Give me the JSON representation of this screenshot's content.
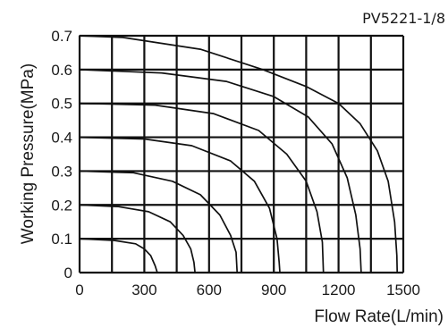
{
  "chart_data": {
    "type": "line",
    "title": "PV5221-1/8",
    "xlabel": "Flow Rate(L/min)",
    "ylabel": "Working Pressure(MPa)",
    "xlim": [
      0,
      1500
    ],
    "ylim": [
      0,
      0.7
    ],
    "grid": true,
    "x_tick_labels": [
      "0",
      "300",
      "600",
      "900",
      "1200",
      "1500"
    ],
    "x_tick_values": [
      0,
      300,
      600,
      900,
      1200,
      1500
    ],
    "y_tick_labels": [
      "0",
      "0.1",
      "0.2",
      "0.3",
      "0.4",
      "0.5",
      "0.6",
      "0.7"
    ],
    "y_tick_values": [
      0,
      0.1,
      0.2,
      0.3,
      0.4,
      0.5,
      0.6,
      0.7
    ],
    "series": [
      {
        "start_pressure": 0.1,
        "points": [
          [
            0,
            0.1
          ],
          [
            160,
            0.095
          ],
          [
            260,
            0.085
          ],
          [
            300,
            0.07
          ],
          [
            330,
            0.05
          ],
          [
            350,
            0.02
          ],
          [
            360,
            0
          ]
        ]
      },
      {
        "start_pressure": 0.2,
        "points": [
          [
            0,
            0.2
          ],
          [
            180,
            0.195
          ],
          [
            320,
            0.18
          ],
          [
            420,
            0.15
          ],
          [
            480,
            0.11
          ],
          [
            515,
            0.07
          ],
          [
            530,
            0.03
          ],
          [
            535,
            0
          ]
        ]
      },
      {
        "start_pressure": 0.3,
        "points": [
          [
            0,
            0.3
          ],
          [
            250,
            0.295
          ],
          [
            430,
            0.27
          ],
          [
            560,
            0.23
          ],
          [
            650,
            0.17
          ],
          [
            700,
            0.11
          ],
          [
            725,
            0.06
          ],
          [
            730,
            0
          ]
        ]
      },
      {
        "start_pressure": 0.4,
        "points": [
          [
            0,
            0.4
          ],
          [
            300,
            0.395
          ],
          [
            520,
            0.375
          ],
          [
            700,
            0.33
          ],
          [
            810,
            0.27
          ],
          [
            880,
            0.19
          ],
          [
            915,
            0.1
          ],
          [
            925,
            0.03
          ],
          [
            928,
            0
          ]
        ]
      },
      {
        "start_pressure": 0.5,
        "points": [
          [
            0,
            0.5
          ],
          [
            350,
            0.495
          ],
          [
            620,
            0.47
          ],
          [
            830,
            0.42
          ],
          [
            960,
            0.35
          ],
          [
            1050,
            0.27
          ],
          [
            1100,
            0.18
          ],
          [
            1125,
            0.09
          ],
          [
            1130,
            0
          ]
        ]
      },
      {
        "start_pressure": 0.6,
        "points": [
          [
            0,
            0.6
          ],
          [
            380,
            0.59
          ],
          [
            680,
            0.565
          ],
          [
            900,
            0.52
          ],
          [
            1060,
            0.46
          ],
          [
            1170,
            0.38
          ],
          [
            1240,
            0.28
          ],
          [
            1280,
            0.17
          ],
          [
            1300,
            0.07
          ],
          [
            1305,
            0
          ]
        ]
      },
      {
        "start_pressure": 0.7,
        "points": [
          [
            0,
            0.7
          ],
          [
            200,
            0.695
          ],
          [
            560,
            0.66
          ],
          [
            850,
            0.6
          ],
          [
            1050,
            0.55
          ],
          [
            1200,
            0.5
          ],
          [
            1300,
            0.44
          ],
          [
            1380,
            0.36
          ],
          [
            1430,
            0.27
          ],
          [
            1460,
            0.15
          ],
          [
            1470,
            0.05
          ],
          [
            1472,
            0
          ]
        ]
      }
    ]
  }
}
